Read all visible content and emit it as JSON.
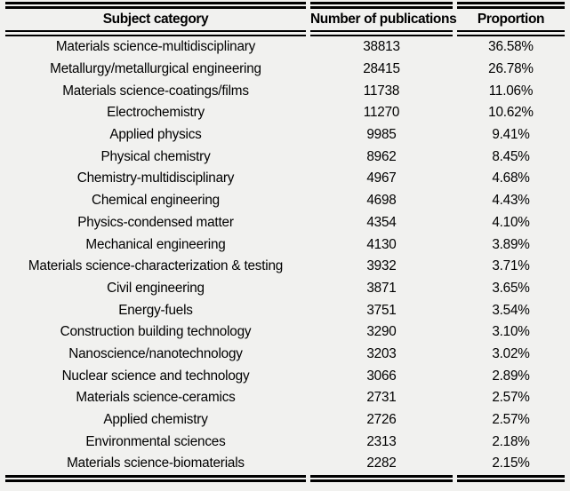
{
  "chart_data": {
    "type": "table",
    "columns": [
      "Subject category",
      "Number of publications",
      "Proportion"
    ],
    "rows": [
      {
        "category": "Materials science-multidisciplinary",
        "publications": 38813,
        "proportion": "36.58%"
      },
      {
        "category": "Metallurgy/metallurgical engineering",
        "publications": 28415,
        "proportion": "26.78%"
      },
      {
        "category": "Materials science-coatings/films",
        "publications": 11738,
        "proportion": "11.06%"
      },
      {
        "category": "Electrochemistry",
        "publications": 11270,
        "proportion": "10.62%"
      },
      {
        "category": "Applied physics",
        "publications": 9985,
        "proportion": "9.41%"
      },
      {
        "category": "Physical chemistry",
        "publications": 8962,
        "proportion": "8.45%"
      },
      {
        "category": "Chemistry-multidisciplinary",
        "publications": 4967,
        "proportion": "4.68%"
      },
      {
        "category": "Chemical engineering",
        "publications": 4698,
        "proportion": "4.43%"
      },
      {
        "category": "Physics-condensed matter",
        "publications": 4354,
        "proportion": "4.10%"
      },
      {
        "category": "Mechanical engineering",
        "publications": 4130,
        "proportion": "3.89%"
      },
      {
        "category": "Materials science-characterization & testing",
        "publications": 3932,
        "proportion": "3.71%"
      },
      {
        "category": "Civil engineering",
        "publications": 3871,
        "proportion": "3.65%"
      },
      {
        "category": "Energy-fuels",
        "publications": 3751,
        "proportion": "3.54%"
      },
      {
        "category": "Construction building technology",
        "publications": 3290,
        "proportion": "3.10%"
      },
      {
        "category": "Nanoscience/nanotechnology",
        "publications": 3203,
        "proportion": "3.02%"
      },
      {
        "category": "Nuclear science and technology",
        "publications": 3066,
        "proportion": "2.89%"
      },
      {
        "category": "Materials science-ceramics",
        "publications": 2731,
        "proportion": "2.57%"
      },
      {
        "category": "Applied chemistry",
        "publications": 2726,
        "proportion": "2.57%"
      },
      {
        "category": "Environmental sciences",
        "publications": 2313,
        "proportion": "2.18%"
      },
      {
        "category": "Materials science-biomaterials",
        "publications": 2282,
        "proportion": "2.15%"
      }
    ],
    "layout": {
      "border_style": "double-rule top, below header, and bottom; rules broken at column gaps",
      "alignment": "all columns centered",
      "grid": "no inner row/column lines"
    }
  },
  "colors": {
    "background": "#f1f1ef",
    "rule": "#000000",
    "text": "#000000"
  }
}
